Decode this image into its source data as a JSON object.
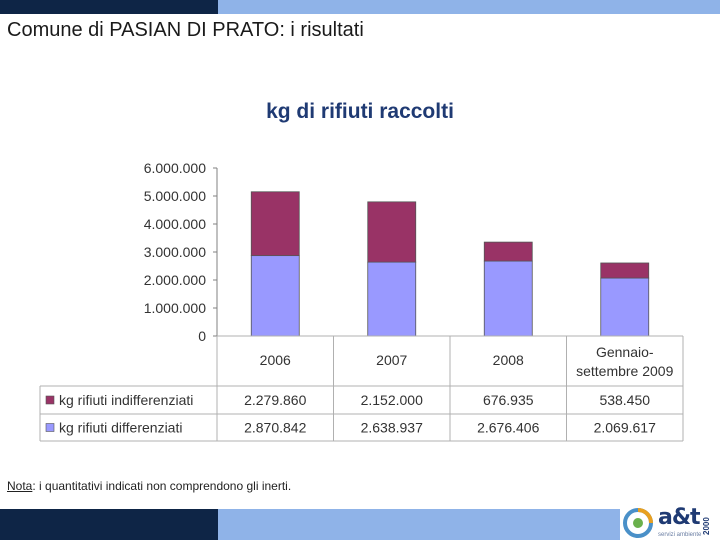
{
  "slide": {
    "title": "Comune di PASIAN DI PRATO: i risultati",
    "note_label": "Nota",
    "note_text": ": i quantitativi indicati non comprendono gli inerti."
  },
  "logo": {
    "name": "a&t",
    "year": "2000",
    "tagline": "servizi ambiente"
  },
  "colors": {
    "indifferenziati": "#993366",
    "differenziati": "#9999ff",
    "title": "#1f3a73"
  },
  "chart_data": {
    "type": "bar",
    "stacked": true,
    "title": "kg di rifiuti raccolti",
    "categories": [
      "2006",
      "2007",
      "2008",
      "Gennaio-settembre 2009"
    ],
    "ylim": [
      0,
      6000000
    ],
    "yticks": [
      "6.000.000",
      "5.000.000",
      "4.000.000",
      "3.000.000",
      "2.000.000",
      "1.000.000",
      "0"
    ],
    "grid": false,
    "series": [
      {
        "name": "kg rifiuti indifferenziati",
        "values": [
          2279860,
          2152000,
          676935,
          538450
        ],
        "labels": [
          "2.279.860",
          "2.152.000",
          "676.935",
          "538.450"
        ]
      },
      {
        "name": "kg rifiuti differenziati",
        "values": [
          2870842,
          2638937,
          2676406,
          2069617
        ],
        "labels": [
          "2.870.842",
          "2.638.937",
          "2.676.406",
          "2.069.617"
        ]
      }
    ]
  }
}
